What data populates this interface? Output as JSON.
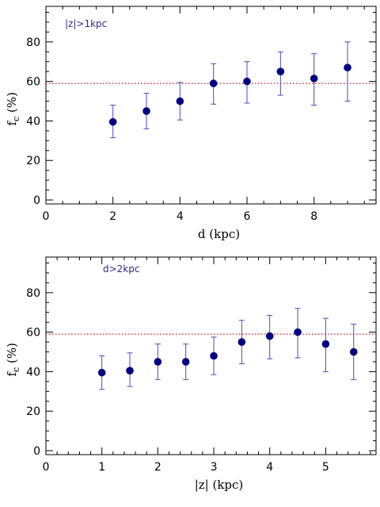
{
  "colors": {
    "marker": "#000080",
    "errorbar": "#4b4bc0",
    "refline": "#e01010",
    "annotation": "#2b2b8c"
  },
  "chart_data": [
    {
      "type": "scatter",
      "annotation": "|z|>1kpc",
      "xlabel": "d (kpc)",
      "ylabel": "f_c (%)",
      "xlim": [
        0,
        9.85
      ],
      "ylim": [
        -2,
        98
      ],
      "xticks": [
        0,
        2,
        4,
        6,
        8
      ],
      "yticks": [
        0,
        20,
        40,
        60,
        80
      ],
      "reference_line": 59,
      "points": [
        {
          "x": 2,
          "y": 39.5,
          "low": 31.5,
          "high": 48
        },
        {
          "x": 3,
          "y": 45,
          "low": 36,
          "high": 54
        },
        {
          "x": 4,
          "y": 50,
          "low": 40.5,
          "high": 59.5
        },
        {
          "x": 5,
          "y": 59,
          "low": 48.5,
          "high": 69
        },
        {
          "x": 6,
          "y": 60,
          "low": 49,
          "high": 70
        },
        {
          "x": 7,
          "y": 65,
          "low": 53,
          "high": 75
        },
        {
          "x": 8,
          "y": 61.5,
          "low": 48,
          "high": 74
        },
        {
          "x": 9,
          "y": 67,
          "low": 50,
          "high": 80
        }
      ]
    },
    {
      "type": "scatter",
      "annotation": "d>2kpc",
      "xlabel": "|z| (kpc)",
      "ylabel": "f_c (%)",
      "xlim": [
        0,
        5.9
      ],
      "ylim": [
        -2,
        98
      ],
      "xticks": [
        0,
        1,
        2,
        3,
        4,
        5
      ],
      "yticks": [
        0,
        20,
        40,
        60,
        80
      ],
      "reference_line": 59,
      "points": [
        {
          "x": 1,
          "y": 39.5,
          "low": 31,
          "high": 48
        },
        {
          "x": 1.5,
          "y": 40.5,
          "low": 32.5,
          "high": 49.5
        },
        {
          "x": 2,
          "y": 45,
          "low": 36,
          "high": 54
        },
        {
          "x": 2.5,
          "y": 45,
          "low": 36,
          "high": 54
        },
        {
          "x": 3,
          "y": 48,
          "low": 38.5,
          "high": 57.5
        },
        {
          "x": 3.5,
          "y": 55,
          "low": 44,
          "high": 66
        },
        {
          "x": 4,
          "y": 58,
          "low": 46.5,
          "high": 68.5
        },
        {
          "x": 4.5,
          "y": 60,
          "low": 47,
          "high": 72
        },
        {
          "x": 5,
          "y": 54,
          "low": 40,
          "high": 67
        },
        {
          "x": 5.5,
          "y": 50,
          "low": 36,
          "high": 64
        }
      ]
    }
  ]
}
